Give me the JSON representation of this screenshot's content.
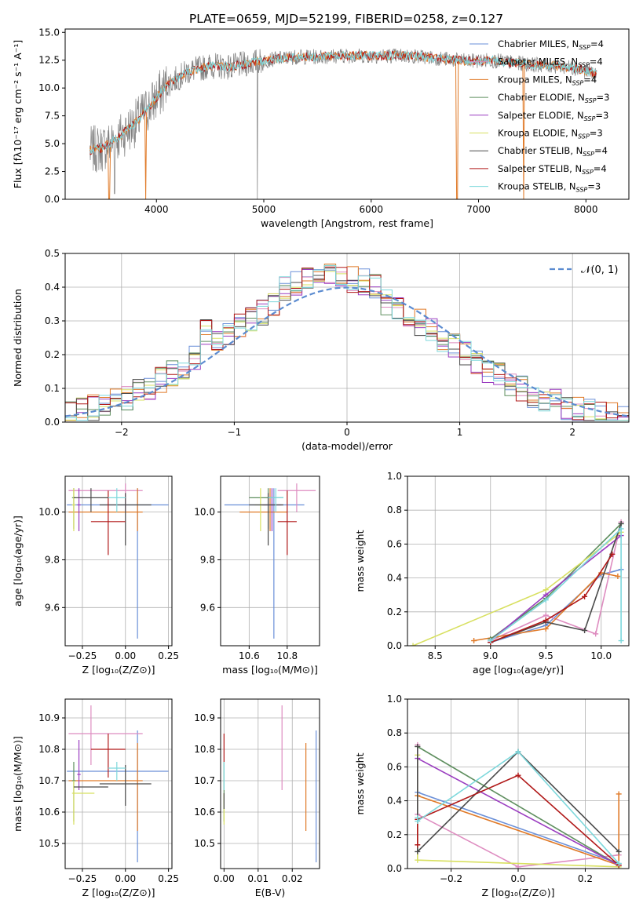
{
  "page_title": "PLATE=0659, MJD=52199, FIBERID=0258, z=0.127",
  "colors": {
    "chabrier_miles": "#6a8fd8",
    "salpeter_miles": "#de8cc0",
    "kroupa_miles": "#e07a28",
    "chabrier_elodie": "#5f8f5f",
    "salpeter_elodie": "#9a3cc0",
    "kroupa_elodie": "#d8e060",
    "chabrier_stelib": "#4a4a4a",
    "salpeter_stelib": "#b01818",
    "kroupa_stelib": "#7dd8dc",
    "normal_curve": "#5b8bd0",
    "grid": "#b0b0b0"
  },
  "chart_data": [
    {
      "id": "spectrum",
      "type": "line",
      "xlabel": "wavelength [Angstrom, rest frame]",
      "ylabel": "Flux [fλ10⁻¹⁷ erg cm⁻² s⁻¹ A⁻¹]",
      "xlim": [
        3150,
        8400
      ],
      "ylim": [
        0,
        15.3
      ],
      "grid": false,
      "legend": "top-right",
      "xticks": [
        4000,
        5000,
        6000,
        7000,
        8000
      ],
      "yticks": [
        0.0,
        2.5,
        5.0,
        7.5,
        10.0,
        12.5,
        15.0
      ],
      "legend_entries": [
        {
          "label": "Chabrier MILES, N",
          "sub": "SSP",
          "tail": "=4",
          "color": "chabrier_miles"
        },
        {
          "label": "Salpeter MILES, N",
          "sub": "SSP",
          "tail": "=4",
          "color": "salpeter_miles"
        },
        {
          "label": "Kroupa MILES, N",
          "sub": "SSP",
          "tail": "=4",
          "color": "kroupa_miles"
        },
        {
          "label": "Chabrier ELODIE, N",
          "sub": "SSP",
          "tail": "=3",
          "color": "chabrier_elodie"
        },
        {
          "label": "Salpeter ELODIE, N",
          "sub": "SSP",
          "tail": "=3",
          "color": "salpeter_elodie"
        },
        {
          "label": "Kroupa ELODIE, N",
          "sub": "SSP",
          "tail": "=3",
          "color": "kroupa_elodie"
        },
        {
          "label": "Chabrier STELIB, N",
          "sub": "SSP",
          "tail": "=4",
          "color": "chabrier_stelib"
        },
        {
          "label": "Salpeter STELIB, N",
          "sub": "SSP",
          "tail": "=4",
          "color": "salpeter_stelib"
        },
        {
          "label": "Kroupa STELIB, N",
          "sub": "SSP",
          "tail": "=3",
          "color": "kroupa_stelib"
        }
      ],
      "continuum": [
        [
          3380,
          4.4
        ],
        [
          3500,
          4.6
        ],
        [
          3650,
          5.6
        ],
        [
          3800,
          6.8
        ],
        [
          3950,
          8.5
        ],
        [
          4100,
          10.3
        ],
        [
          4300,
          11.5
        ],
        [
          4500,
          12.0
        ],
        [
          4700,
          11.9
        ],
        [
          4900,
          12.3
        ],
        [
          5100,
          12.6
        ],
        [
          5300,
          12.8
        ],
        [
          5500,
          12.8
        ],
        [
          5700,
          12.9
        ],
        [
          5900,
          12.9
        ],
        [
          6100,
          12.9
        ],
        [
          6300,
          12.9
        ],
        [
          6500,
          12.8
        ],
        [
          6700,
          12.6
        ],
        [
          6900,
          12.4
        ],
        [
          7100,
          12.5
        ],
        [
          7300,
          12.3
        ],
        [
          7500,
          12.1
        ],
        [
          7700,
          12.0
        ],
        [
          7900,
          11.8
        ],
        [
          8100,
          11.3
        ]
      ]
    },
    {
      "id": "residuals",
      "type": "histogram",
      "xlabel": "(data-model)/error",
      "ylabel": "Normed distribution",
      "xlim": [
        -2.5,
        2.5
      ],
      "ylim": [
        0,
        0.5
      ],
      "grid": true,
      "legend": "top-right",
      "xticks": [
        -2,
        -1,
        0,
        1,
        2
      ],
      "yticks": [
        0.0,
        0.1,
        0.2,
        0.3,
        0.4,
        0.5
      ],
      "normal_label": "𝒩(0, 1)",
      "bin_width": 0.1
    },
    {
      "id": "age_vs_z",
      "type": "scatter",
      "xlabel": "Z [log₁₀(Z/Z⊙)]",
      "ylabel": "age  [log₁₀(age/yr)]",
      "xlim": [
        -0.35,
        0.27
      ],
      "ylim": [
        9.44,
        10.15
      ],
      "grid": true,
      "xticks": [
        -0.25,
        0.0,
        0.25
      ],
      "yticks": [
        9.6,
        9.8,
        10.0
      ],
      "points": [
        {
          "c": "chabrier_miles",
          "x": 0.07,
          "y": 10.03,
          "xe": [
            -0.34,
            0.25
          ],
          "ye": [
            9.47,
            10.1
          ]
        },
        {
          "c": "salpeter_miles",
          "x": 0.0,
          "y": 10.09,
          "xe": [
            -0.33,
            0.1
          ],
          "ye": [
            10.0,
            10.12
          ]
        },
        {
          "c": "kroupa_miles",
          "x": 0.07,
          "y": 10.0,
          "xe": [
            -0.33,
            0.1
          ],
          "ye": [
            9.92,
            10.1
          ]
        },
        {
          "c": "chabrier_elodie",
          "x": -0.3,
          "y": 10.06,
          "xe": [
            -0.31,
            -0.29
          ],
          "ye": [
            9.93,
            10.1
          ]
        },
        {
          "c": "salpeter_elodie",
          "x": -0.27,
          "y": 10.03,
          "xe": [
            -0.28,
            -0.26
          ],
          "ye": [
            9.92,
            10.1
          ]
        },
        {
          "c": "kroupa_elodie",
          "x": -0.3,
          "y": 10.03,
          "xe": [
            -0.31,
            -0.29
          ],
          "ye": [
            9.92,
            10.1
          ]
        },
        {
          "c": "chabrier_stelib",
          "x": 0.0,
          "y": 10.03,
          "xe": [
            -0.15,
            0.15
          ],
          "ye": [
            9.86,
            10.08
          ]
        },
        {
          "c": "salpeter_stelib",
          "x": -0.1,
          "y": 9.96,
          "xe": [
            -0.2,
            0.0
          ],
          "ye": [
            9.82,
            10.09
          ]
        },
        {
          "c": "kroupa_stelib",
          "x": -0.05,
          "y": 10.06,
          "xe": [
            -0.1,
            0.0
          ],
          "ye": [
            10.0,
            10.1
          ]
        },
        {
          "c": "chabrier_stelib",
          "x": -0.2,
          "y": 10.06,
          "xe": [
            -0.3,
            -0.1
          ],
          "ye": [
            10.0,
            10.1
          ]
        }
      ]
    },
    {
      "id": "age_vs_mass",
      "type": "scatter",
      "xlabel": "mass [log₁₀(M/M⊙)]",
      "ylabel": "",
      "xlim": [
        10.45,
        10.97
      ],
      "ylim": [
        9.44,
        10.15
      ],
      "grid": true,
      "xticks": [
        10.6,
        10.8
      ],
      "yticks": [
        9.6,
        9.8,
        10.0
      ],
      "points": [
        {
          "c": "chabrier_miles",
          "x": 10.73,
          "y": 10.03,
          "xe": [
            10.47,
            10.89
          ],
          "ye": [
            9.47,
            10.1
          ]
        },
        {
          "c": "salpeter_miles",
          "x": 10.85,
          "y": 10.09,
          "xe": [
            10.75,
            10.95
          ],
          "ye": [
            10.0,
            10.12
          ]
        },
        {
          "c": "kroupa_miles",
          "x": 10.71,
          "y": 10.0,
          "xe": [
            10.55,
            10.8
          ],
          "ye": [
            9.92,
            10.1
          ]
        },
        {
          "c": "chabrier_elodie",
          "x": 10.7,
          "y": 10.06,
          "xe": [
            10.6,
            10.78
          ],
          "ye": [
            9.93,
            10.1
          ]
        },
        {
          "c": "salpeter_elodie",
          "x": 10.72,
          "y": 10.03,
          "xe": [
            10.67,
            10.77
          ],
          "ye": [
            9.92,
            10.1
          ]
        },
        {
          "c": "kroupa_elodie",
          "x": 10.66,
          "y": 10.03,
          "xe": [
            10.63,
            10.69
          ],
          "ye": [
            9.92,
            10.1
          ]
        },
        {
          "c": "chabrier_stelib",
          "x": 10.7,
          "y": 10.03,
          "xe": [
            10.6,
            10.78
          ],
          "ye": [
            9.86,
            10.08
          ]
        },
        {
          "c": "salpeter_stelib",
          "x": 10.8,
          "y": 9.96,
          "xe": [
            10.75,
            10.85
          ],
          "ye": [
            9.82,
            10.09
          ]
        },
        {
          "c": "kroupa_stelib",
          "x": 10.74,
          "y": 10.06,
          "xe": [
            10.7,
            10.78
          ],
          "ye": [
            10.0,
            10.1
          ]
        }
      ]
    },
    {
      "id": "weight_vs_age",
      "type": "line",
      "xlabel": "age  [log₁₀(age/yr)]",
      "ylabel": "mass weight",
      "xlim": [
        8.25,
        10.25
      ],
      "ylim": [
        0,
        1.0
      ],
      "grid": true,
      "xticks": [
        8.5,
        9.0,
        9.5,
        10.0
      ],
      "yticks": [
        0.0,
        0.2,
        0.4,
        0.6,
        0.8,
        1.0
      ],
      "series": [
        {
          "c": "chabrier_miles",
          "x": [
            9.0,
            9.5,
            10.0,
            10.18
          ],
          "y": [
            0.02,
            0.12,
            0.42,
            0.45
          ]
        },
        {
          "c": "salpeter_miles",
          "x": [
            9.0,
            9.5,
            9.95,
            10.18
          ],
          "y": [
            0.03,
            0.18,
            0.07,
            0.73
          ]
        },
        {
          "c": "kroupa_miles",
          "x": [
            8.85,
            9.5,
            10.0,
            10.15
          ],
          "y": [
            0.03,
            0.1,
            0.43,
            0.41
          ]
        },
        {
          "c": "chabrier_elodie",
          "x": [
            9.0,
            9.5,
            10.18
          ],
          "y": [
            0.04,
            0.28,
            0.72
          ]
        },
        {
          "c": "salpeter_elodie",
          "x": [
            9.0,
            9.5,
            10.18
          ],
          "y": [
            0.03,
            0.3,
            0.65
          ]
        },
        {
          "c": "kroupa_elodie",
          "x": [
            8.3,
            9.5,
            10.18
          ],
          "y": [
            0.0,
            0.33,
            0.67
          ]
        },
        {
          "c": "chabrier_stelib",
          "x": [
            9.0,
            9.5,
            9.85,
            10.18
          ],
          "y": [
            0.02,
            0.14,
            0.09,
            0.72
          ]
        },
        {
          "c": "salpeter_stelib",
          "x": [
            9.0,
            9.5,
            9.85,
            10.1
          ],
          "y": [
            0.02,
            0.15,
            0.29,
            0.54
          ]
        },
        {
          "c": "kroupa_stelib",
          "x": [
            9.0,
            9.5,
            10.18,
            10.18
          ],
          "y": [
            0.03,
            0.27,
            0.69,
            0.03
          ]
        }
      ]
    },
    {
      "id": "mass_vs_z",
      "type": "scatter",
      "xlabel": "Z [log₁₀(Z/Z⊙)]",
      "ylabel": "mass [log₁₀(M/M⊙)]",
      "xlim": [
        -0.35,
        0.27
      ],
      "ylim": [
        10.42,
        10.96
      ],
      "grid": true,
      "xticks": [
        -0.25,
        0.0,
        0.25
      ],
      "yticks": [
        10.5,
        10.6,
        10.7,
        10.8,
        10.9
      ],
      "points": [
        {
          "c": "chabrier_miles",
          "x": 0.07,
          "y": 10.73,
          "xe": [
            -0.34,
            0.25
          ],
          "ye": [
            10.44,
            10.86
          ]
        },
        {
          "c": "salpeter_miles",
          "x": -0.2,
          "y": 10.85,
          "xe": [
            -0.33,
            0.1
          ],
          "ye": [
            10.75,
            10.94
          ]
        },
        {
          "c": "kroupa_miles",
          "x": 0.07,
          "y": 10.7,
          "xe": [
            -0.33,
            0.1
          ],
          "ye": [
            10.54,
            10.82
          ]
        },
        {
          "c": "chabrier_elodie",
          "x": -0.3,
          "y": 10.7,
          "xe": [
            -0.31,
            -0.29
          ],
          "ye": [
            10.57,
            10.76
          ]
        },
        {
          "c": "salpeter_elodie",
          "x": -0.27,
          "y": 10.72,
          "xe": [
            -0.28,
            -0.26
          ],
          "ye": [
            10.67,
            10.83
          ]
        },
        {
          "c": "kroupa_elodie",
          "x": -0.3,
          "y": 10.66,
          "xe": [
            -0.31,
            -0.18
          ],
          "ye": [
            10.56,
            10.7
          ]
        },
        {
          "c": "chabrier_stelib",
          "x": 0.0,
          "y": 10.69,
          "xe": [
            -0.15,
            0.15
          ],
          "ye": [
            10.62,
            10.75
          ]
        },
        {
          "c": "salpeter_stelib",
          "x": -0.1,
          "y": 10.8,
          "xe": [
            -0.2,
            0.0
          ],
          "ye": [
            10.71,
            10.85
          ]
        },
        {
          "c": "kroupa_stelib",
          "x": -0.05,
          "y": 10.74,
          "xe": [
            -0.1,
            0.0
          ],
          "ye": [
            10.7,
            10.76
          ]
        },
        {
          "c": "chabrier_stelib",
          "x": -0.2,
          "y": 10.68,
          "xe": [
            -0.3,
            -0.1
          ],
          "ye": [
            10.68,
            10.68
          ]
        }
      ]
    },
    {
      "id": "mass_vs_ebv",
      "type": "scatter",
      "xlabel": "E(B-V)",
      "ylabel": "",
      "xlim": [
        -0.001,
        0.028
      ],
      "ylim": [
        10.42,
        10.96
      ],
      "grid": true,
      "xticks": [
        0.0,
        0.01,
        0.02
      ],
      "yticks": [
        10.5,
        10.6,
        10.7,
        10.8,
        10.9
      ],
      "points": [
        {
          "c": "chabrier_miles",
          "x": 0.027,
          "y": 10.73,
          "xe": [
            0.027,
            0.027
          ],
          "ye": [
            10.44,
            10.86
          ]
        },
        {
          "c": "salpeter_miles",
          "x": 0.017,
          "y": 10.85,
          "xe": [
            0.017,
            0.017
          ],
          "ye": [
            10.67,
            10.94
          ]
        },
        {
          "c": "kroupa_miles",
          "x": 0.024,
          "y": 10.7,
          "xe": [
            0.024,
            0.024
          ],
          "ye": [
            10.54,
            10.82
          ]
        },
        {
          "c": "chabrier_elodie",
          "x": 0.0,
          "y": 10.7,
          "xe": [
            0.0,
            0.0
          ],
          "ye": [
            10.57,
            10.76
          ]
        },
        {
          "c": "kroupa_elodie",
          "x": 0.0,
          "y": 10.6,
          "xe": [
            0.0,
            0.0
          ],
          "ye": [
            10.56,
            10.66
          ]
        },
        {
          "c": "salpeter_stelib",
          "x": 0.0,
          "y": 10.8,
          "xe": [
            0.0,
            0.0
          ],
          "ye": [
            10.76,
            10.85
          ]
        },
        {
          "c": "chabrier_stelib",
          "x": 0.0,
          "y": 10.63,
          "xe": [
            0.0,
            0.0
          ],
          "ye": [
            10.61,
            10.66
          ]
        },
        {
          "c": "kroupa_stelib",
          "x": 0.0,
          "y": 10.7,
          "xe": [
            0.0,
            0.0
          ],
          "ye": [
            10.67,
            10.76
          ]
        }
      ]
    },
    {
      "id": "weight_vs_z",
      "type": "line",
      "xlabel": "Z [log₁₀(Z/Z⊙)]",
      "ylabel": "mass weight",
      "xlim": [
        -0.33,
        0.33
      ],
      "ylim": [
        0,
        1.0
      ],
      "grid": true,
      "xticks": [
        -0.2,
        0.0,
        0.2
      ],
      "yticks": [
        0.0,
        0.2,
        0.4,
        0.6,
        0.8,
        1.0
      ],
      "series": [
        {
          "c": "chabrier_miles",
          "x": [
            -0.3,
            0.3
          ],
          "y": [
            0.45,
            0.03
          ]
        },
        {
          "c": "salpeter_miles",
          "x": [
            -0.3,
            -0.3,
            0.0,
            0.3
          ],
          "y": [
            0.73,
            0.32,
            0.01,
            0.08
          ]
        },
        {
          "c": "kroupa_miles",
          "x": [
            -0.3,
            0.3,
            0.3
          ],
          "y": [
            0.43,
            0.02,
            0.44
          ]
        },
        {
          "c": "chabrier_elodie",
          "x": [
            -0.3,
            0.3
          ],
          "y": [
            0.72,
            0.02
          ]
        },
        {
          "c": "salpeter_elodie",
          "x": [
            -0.3,
            0.3
          ],
          "y": [
            0.65,
            0.02
          ]
        },
        {
          "c": "kroupa_elodie",
          "x": [
            -0.3,
            -0.3,
            0.3
          ],
          "y": [
            0.67,
            0.05,
            0.01
          ]
        },
        {
          "c": "chabrier_stelib",
          "x": [
            -0.3,
            -0.3,
            0.0,
            0.3
          ],
          "y": [
            0.72,
            0.1,
            0.69,
            0.1
          ]
        },
        {
          "c": "salpeter_stelib",
          "x": [
            -0.3,
            -0.3,
            0.0,
            0.3
          ],
          "y": [
            0.14,
            0.29,
            0.55,
            0.02
          ]
        },
        {
          "c": "kroupa_stelib",
          "x": [
            -0.3,
            -0.3,
            0.0,
            0.3
          ],
          "y": [
            0.3,
            0.28,
            0.69,
            0.03
          ]
        }
      ]
    }
  ]
}
